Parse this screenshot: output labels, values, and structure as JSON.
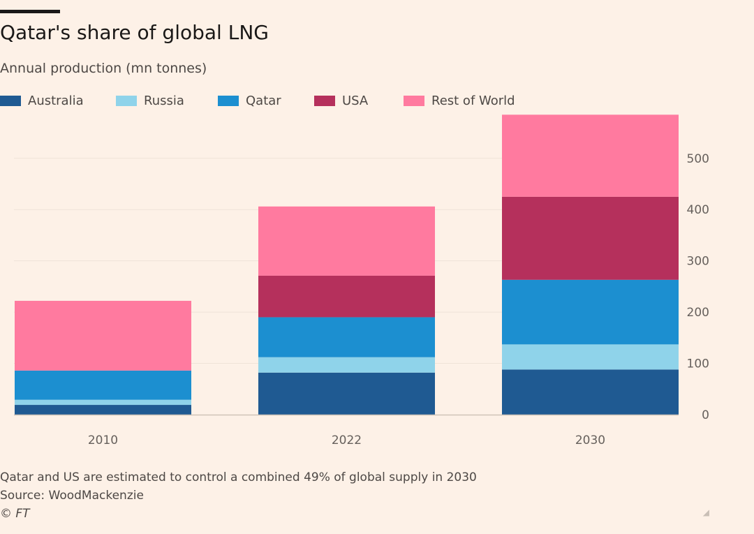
{
  "chart_data": {
    "type": "bar",
    "stacked": true,
    "title": "Qatar's share of global LNG",
    "subtitle": "Annual production (mn tonnes)",
    "categories": [
      "2010",
      "2022",
      "2030"
    ],
    "series": [
      {
        "name": "Australia",
        "color": "#1f5a92",
        "values": [
          19,
          82,
          88
        ]
      },
      {
        "name": "Russia",
        "color": "#8fd3ea",
        "values": [
          10,
          30,
          49
        ]
      },
      {
        "name": "Qatar",
        "color": "#1c8fd0",
        "values": [
          57,
          78,
          126
        ]
      },
      {
        "name": "USA",
        "color": "#b5305c",
        "values": [
          0,
          81,
          162
        ]
      },
      {
        "name": "Rest of World",
        "color": "#ff7a9f",
        "values": [
          136,
          135,
          160
        ]
      }
    ],
    "ylim": [
      0,
      580
    ],
    "yticks": [
      0,
      100,
      200,
      300,
      400,
      500
    ],
    "ytick_labels": [
      "0",
      "100",
      "200",
      "300",
      "400",
      "500"
    ],
    "xlabel": "",
    "ylabel": "",
    "axis_side": "right",
    "grid": true,
    "legend_position": "top-left"
  },
  "footer": {
    "note": "Qatar and US are estimated to control a combined 49% of global supply in 2030",
    "source": "Source: WoodMackenzie",
    "credit": "© FT"
  },
  "colors": {
    "background": "#fdf1e7",
    "gridline": "#efe3d8",
    "axis": "#cfc3b8"
  }
}
